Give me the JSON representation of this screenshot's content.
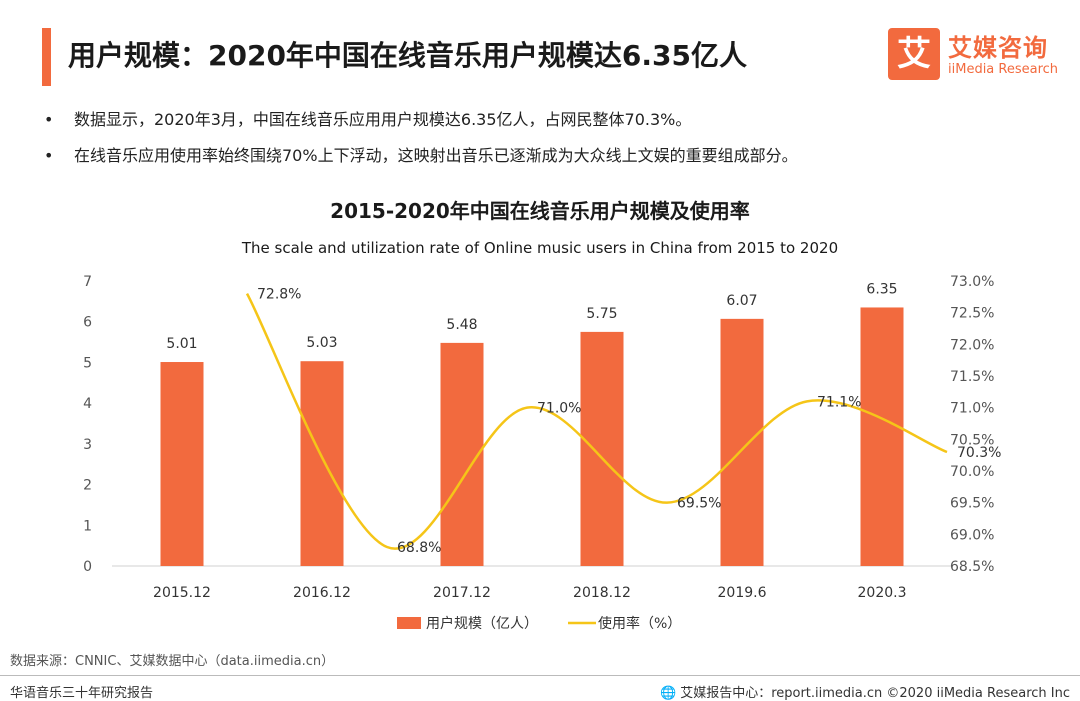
{
  "header": {
    "title": "用户规模：2020年中国在线音乐用户规模达6.35亿人",
    "logo_mark": "艾",
    "logo_cn": "艾媒咨询",
    "logo_en": "iiMedia Research"
  },
  "bullets": [
    "数据显示，2020年3月，中国在线音乐应用用户规模达6.35亿人，占网民整体70.3%。",
    "在线音乐应用使用率始终围绕70%上下浮动，这映射出音乐已逐渐成为大众线上文娱的重要组成部分。"
  ],
  "bullet_symbol": "•",
  "chart_data": {
    "type": "bar",
    "title": "2015-2020年中国在线音乐用户规模及使用率",
    "subtitle": "The scale and utilization rate of Online music users in China from 2015 to 2020",
    "categories": [
      "2015.12",
      "2016.12",
      "2017.12",
      "2018.12",
      "2019.6",
      "2020.3"
    ],
    "series": [
      {
        "name": "用户规模（亿人）",
        "type": "bar",
        "axis": "left",
        "values": [
          5.01,
          5.03,
          5.48,
          5.75,
          6.07,
          6.35
        ],
        "labels": [
          "5.01",
          "5.03",
          "5.48",
          "5.75",
          "6.07",
          "6.35"
        ],
        "color": "#f26a3e"
      },
      {
        "name": "使用率（%）",
        "type": "line",
        "axis": "right",
        "values": [
          72.8,
          68.8,
          71.0,
          69.5,
          71.1,
          70.3
        ],
        "labels": [
          "72.8%",
          "68.8%",
          "71.0%",
          "69.5%",
          "71.1%",
          "70.3%"
        ],
        "color": "#f5c518"
      }
    ],
    "y_left": {
      "min": 0,
      "max": 7,
      "ticks": [
        "0",
        "1",
        "2",
        "3",
        "4",
        "5",
        "6",
        "7"
      ]
    },
    "y_right": {
      "min": 68.5,
      "max": 73.0,
      "ticks": [
        "68.5%",
        "69.0%",
        "69.5%",
        "70.0%",
        "70.5%",
        "71.0%",
        "71.5%",
        "72.0%",
        "72.5%",
        "73.0%"
      ]
    },
    "grid": false,
    "legend_position": "bottom"
  },
  "source": "数据来源：CNNIC、艾媒数据中心（data.iimedia.cn）",
  "footer": {
    "left": "华语音乐三十年研究报告",
    "right": "艾媒报告中心：report.iimedia.cn  ©2020  iiMedia Research  Inc"
  },
  "colors": {
    "accent": "#f26a3e",
    "line": "#f5c518"
  }
}
